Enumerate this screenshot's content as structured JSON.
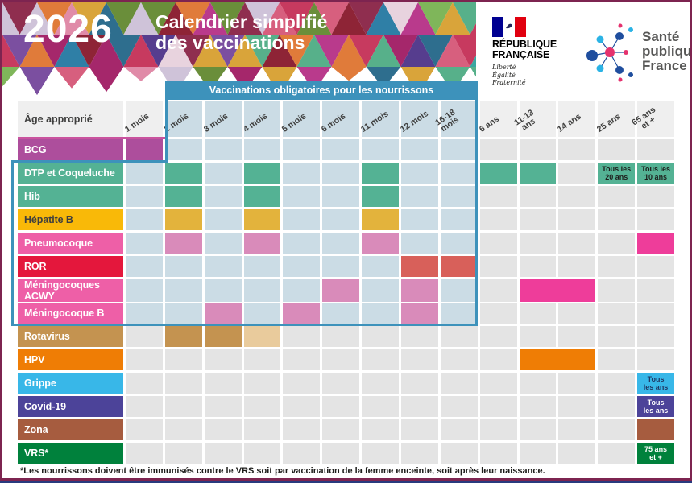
{
  "page": {
    "year": "2026",
    "title_line1": "Calendrier simplifié",
    "title_line2": "des vaccinations"
  },
  "logos": {
    "rf": {
      "line1": "RÉPUBLIQUE",
      "line2": "FRANÇAISE",
      "motto": "Liberté\nÉgalité\nFraternité"
    },
    "spf": {
      "name": "Santé\npublique\nFrance"
    }
  },
  "table": {
    "corner_label": "Âge approprié",
    "obligatory_banner": "Vaccinations obligatoires pour les nourrissons",
    "columns": [
      "1 mois",
      "2 mois",
      "3 mois",
      "4 mois",
      "5 mois",
      "6 mois",
      "11 mois",
      "12 mois",
      "16-18\nmois",
      "6 ans",
      "11-13\nans",
      "14 ans",
      "25 ans",
      "65 ans\net +"
    ],
    "rows": [
      {
        "label": "BCG",
        "label_bg": "#AD4E9C",
        "cells": [
          {
            "col": 0,
            "bg": "#AD4E9C"
          }
        ]
      },
      {
        "label": "DTP et Coqueluche",
        "label_bg": "#54B294",
        "cells": [
          {
            "col": 1,
            "bg": "#54B294"
          },
          {
            "col": 3,
            "bg": "#54B294"
          },
          {
            "col": 6,
            "bg": "#54B294"
          },
          {
            "col": 9,
            "bg": "#54B294"
          },
          {
            "col": 10,
            "bg": "#54B294"
          },
          {
            "col": 12,
            "bg": "#54B294",
            "text": "Tous les\n20 ans",
            "fg": "#1d1d1b"
          },
          {
            "col": 13,
            "bg": "#54B294",
            "text": "Tous les\n10 ans",
            "fg": "#1d1d1b"
          }
        ]
      },
      {
        "label": "Hib",
        "label_bg": "#54B294",
        "cells": [
          {
            "col": 1,
            "bg": "#54B294"
          },
          {
            "col": 3,
            "bg": "#54B294"
          },
          {
            "col": 6,
            "bg": "#54B294"
          }
        ]
      },
      {
        "label": "Hépatite B",
        "label_bg": "#F9B908",
        "label_fg": "#3F3F3E",
        "cells": [
          {
            "col": 1,
            "bg": "#E3B33C"
          },
          {
            "col": 3,
            "bg": "#E3B33C"
          },
          {
            "col": 6,
            "bg": "#E3B33C"
          }
        ]
      },
      {
        "label": "Pneumocoque",
        "label_bg": "#EE5FA7",
        "cells": [
          {
            "col": 1,
            "bg": "#D98BBA"
          },
          {
            "col": 3,
            "bg": "#D98BBA"
          },
          {
            "col": 6,
            "bg": "#D98BBA"
          },
          {
            "col": 13,
            "bg": "#EE3D9A"
          }
        ]
      },
      {
        "label": "ROR",
        "label_bg": "#E4173C",
        "cells": [
          {
            "col": 7,
            "bg": "#D8605A"
          },
          {
            "col": 8,
            "bg": "#D8605A"
          }
        ]
      },
      {
        "label": "Méningocoques ACWY",
        "label_bg": "#EE5FA7",
        "cells": [
          {
            "col": 5,
            "bg": "#D98BBA"
          },
          {
            "col": 7,
            "bg": "#D98BBA"
          },
          {
            "col": 10,
            "span": 2,
            "bg": "#EE3D9A"
          }
        ]
      },
      {
        "label": "Méningocoque B",
        "label_bg": "#EE5FA7",
        "cells": [
          {
            "col": 2,
            "bg": "#D98BBA"
          },
          {
            "col": 4,
            "bg": "#D98BBA"
          },
          {
            "col": 7,
            "bg": "#D98BBA"
          }
        ]
      },
      {
        "label": "Rotavirus",
        "label_bg": "#C49350",
        "cells": [
          {
            "col": 1,
            "bg": "#C49350"
          },
          {
            "col": 2,
            "bg": "#C49350"
          },
          {
            "col": 3,
            "bg": "#E9CB9C"
          }
        ]
      },
      {
        "label": "HPV",
        "label_bg": "#EF7D05",
        "cells": [
          {
            "col": 10,
            "span": 2,
            "bg": "#EF7D05"
          }
        ]
      },
      {
        "label": "Grippe",
        "label_bg": "#38B7E8",
        "cells": [
          {
            "col": 13,
            "bg": "#38B7E8",
            "text": "Tous\nles ans",
            "fg": "#1F3864"
          }
        ]
      },
      {
        "label": "Covid-19",
        "label_bg": "#4C4399",
        "cells": [
          {
            "col": 13,
            "bg": "#4C4399",
            "text": "Tous\nles ans",
            "fg": "#ffffff"
          }
        ]
      },
      {
        "label": "Zona",
        "label_bg": "#A65C3F",
        "cells": [
          {
            "col": 13,
            "bg": "#A65C3F"
          }
        ]
      },
      {
        "label": "VRS*",
        "label_bg": "#00813C",
        "cells": [
          {
            "col": 13,
            "bg": "#00813C",
            "text": "75 ans\net +",
            "fg": "#ffffff"
          }
        ]
      }
    ]
  },
  "footnote": "*Les nourrissons doivent être immunisés contre le VRS soit par vaccination de la femme enceinte, soit après leur naissance.",
  "colors": {
    "accent_blue": "#3D92BB",
    "zone_cell": "#CBDCE5",
    "cell": "#E4E4E4",
    "header_cell": "#EFEFEF",
    "border_maroon": "#7D2450",
    "border_navy": "#283A7E",
    "rf_blue": "#000091",
    "rf_red": "#E1000F",
    "spf_blue": "#1F4E9E",
    "spf_cyan": "#2BB3E5",
    "spf_pink": "#E5326E",
    "mosaic": [
      "#a5276b",
      "#c73a5f",
      "#8f2e4f",
      "#d75f7e",
      "#b93a8c",
      "#7b4fa0",
      "#563d8e",
      "#2f7fa6",
      "#3aa6a0",
      "#57b08a",
      "#7fb65a",
      "#d9a43a",
      "#e07b3a",
      "#c2273d",
      "#8e2436",
      "#e08ba8",
      "#cfc3d9",
      "#e8d3de",
      "#6a8e3a",
      "#2e6e8e"
    ]
  }
}
